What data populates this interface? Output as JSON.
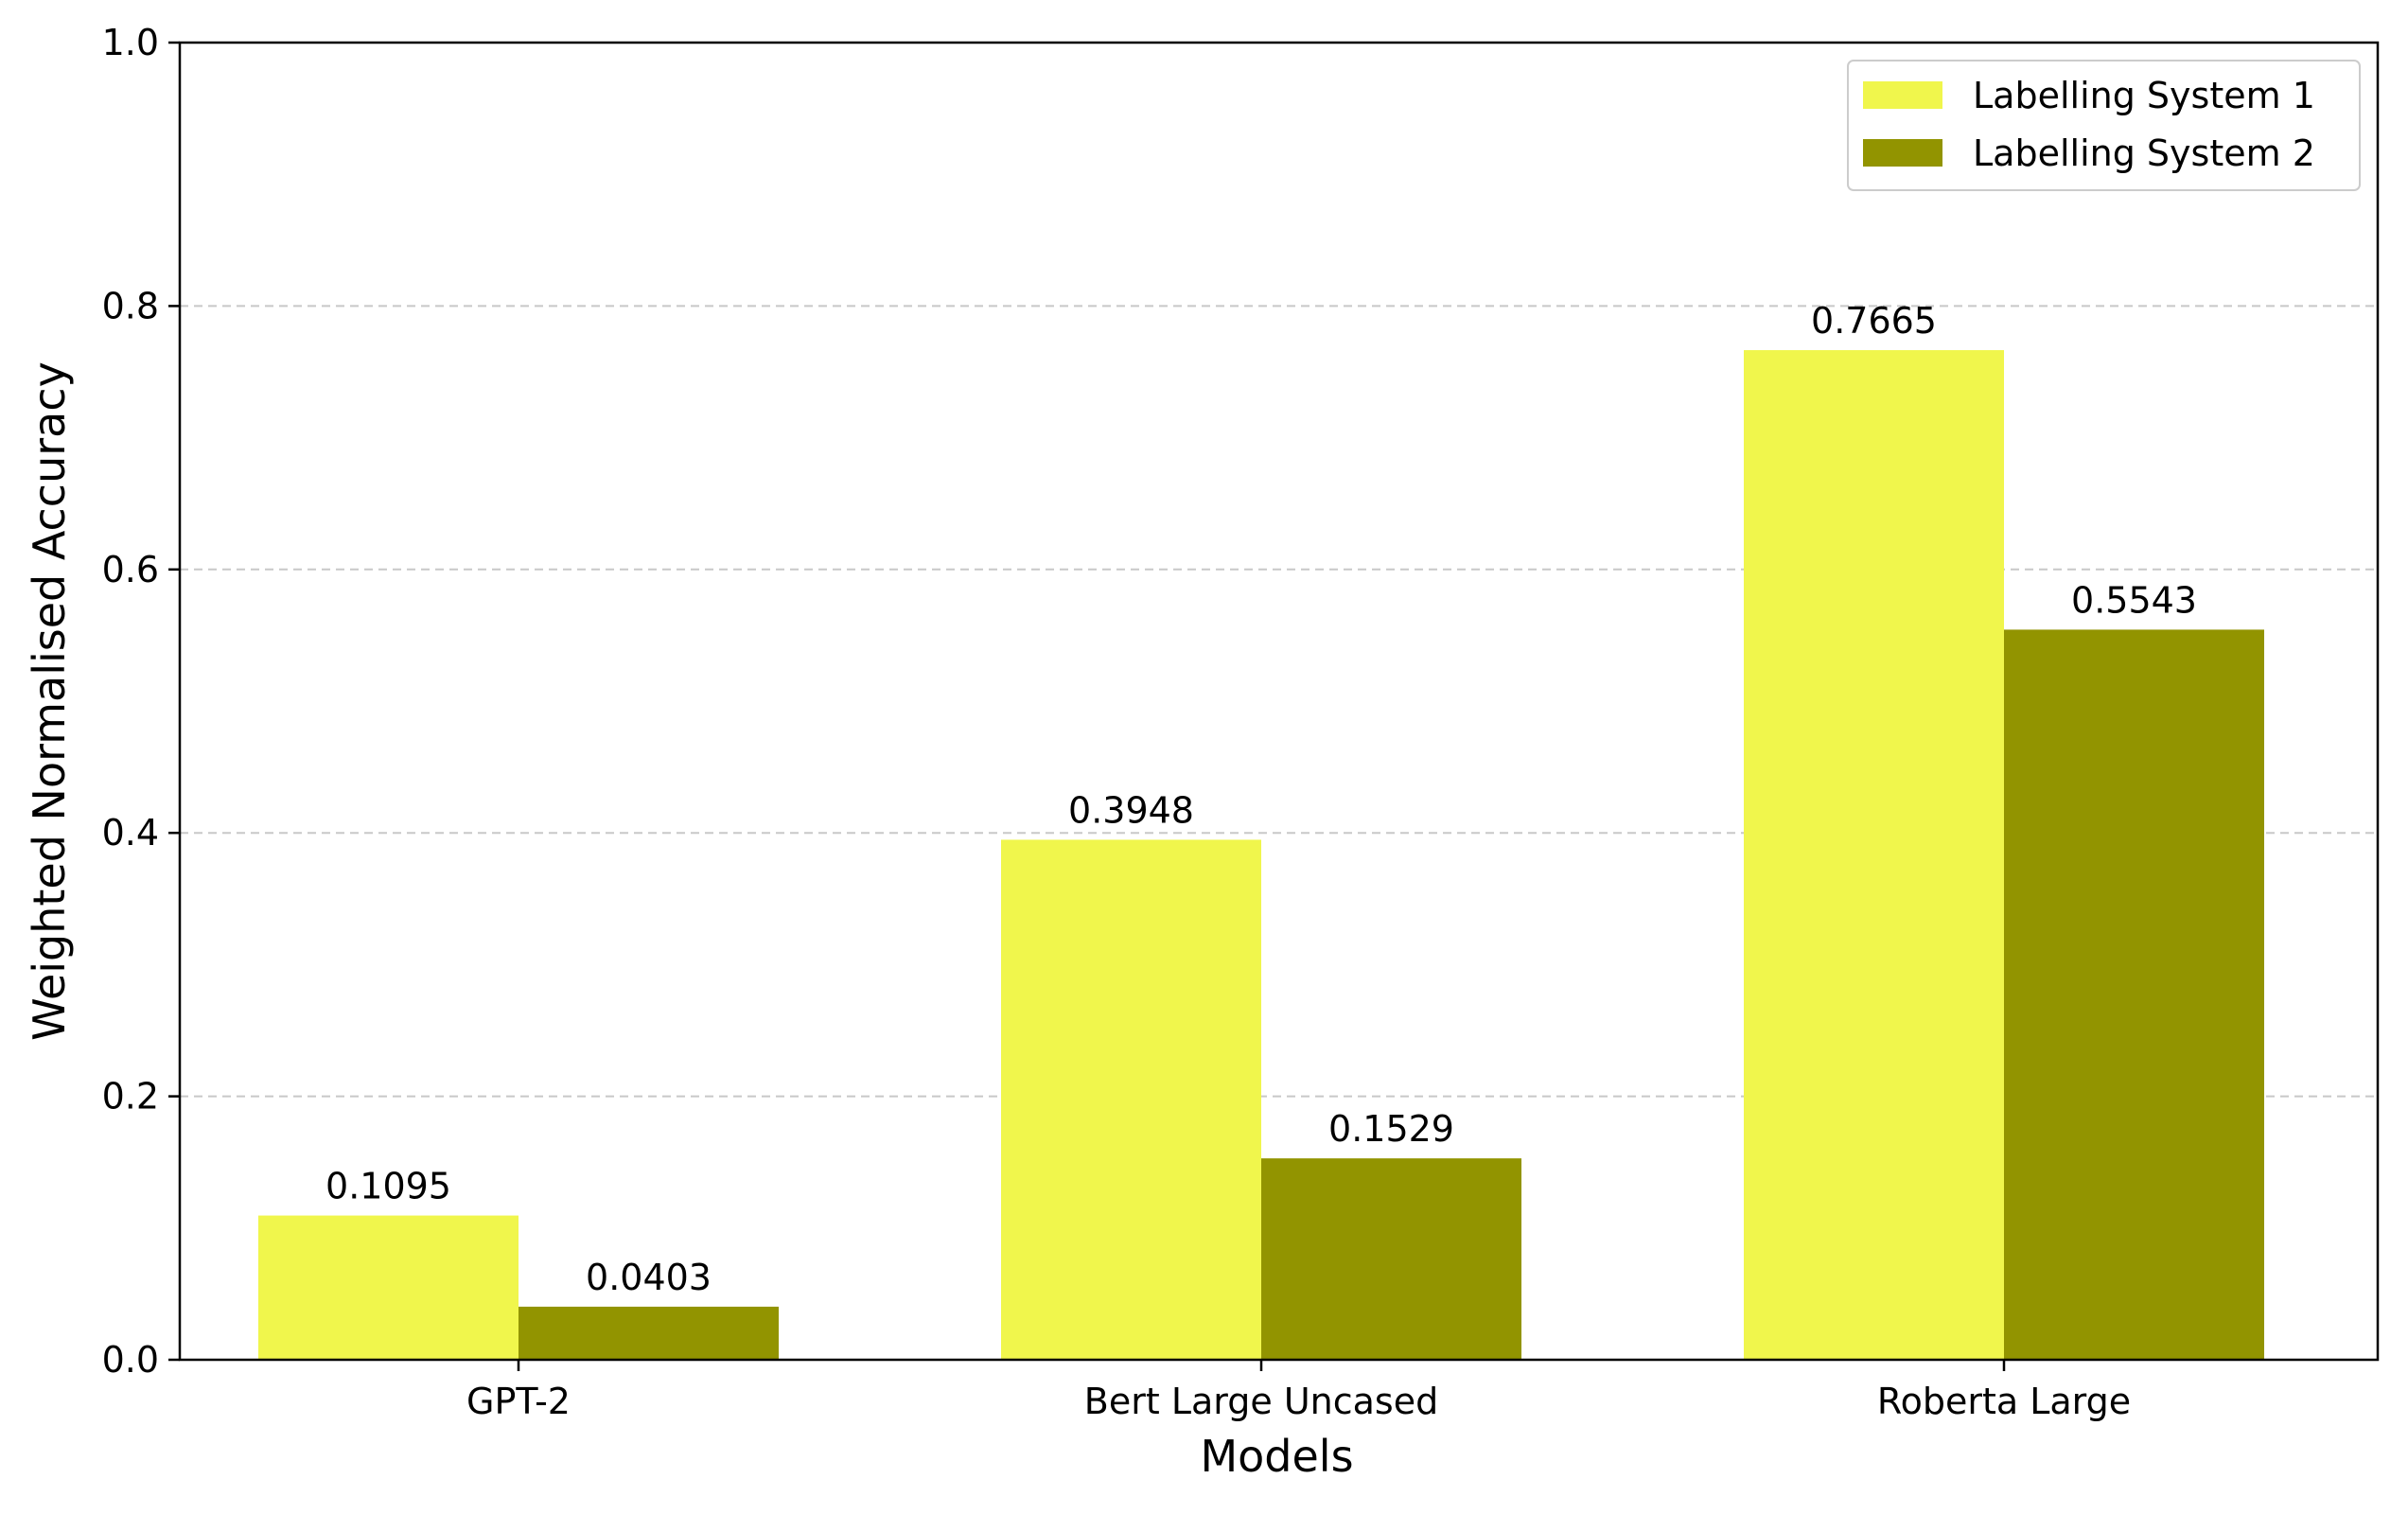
{
  "chart_data": {
    "type": "bar",
    "title": "",
    "xlabel": "Models",
    "ylabel": "Weighted Normalised Accuracy",
    "categories": [
      "GPT-2",
      "Bert Large Uncased",
      "Roberta Large"
    ],
    "series": [
      {
        "name": "Labelling System 1",
        "values": [
          0.1095,
          0.3948,
          0.7665
        ],
        "labels": [
          "0.1095",
          "0.3948",
          "0.7665"
        ],
        "color": "#f0f64c"
      },
      {
        "name": "Labelling System 2",
        "values": [
          0.0403,
          0.1529,
          0.5543
        ],
        "labels": [
          "0.0403",
          "0.1529",
          "0.5543"
        ],
        "color": "#929400"
      }
    ],
    "ylim": [
      0,
      1.0
    ],
    "yticks": [
      0.0,
      0.2,
      0.4,
      0.6,
      0.8,
      1.0
    ],
    "ytick_labels": [
      "0.0",
      "0.2",
      "0.4",
      "0.6",
      "0.8",
      "1.0"
    ],
    "grid": "horizontal dashed",
    "legend_position": "top-right"
  }
}
